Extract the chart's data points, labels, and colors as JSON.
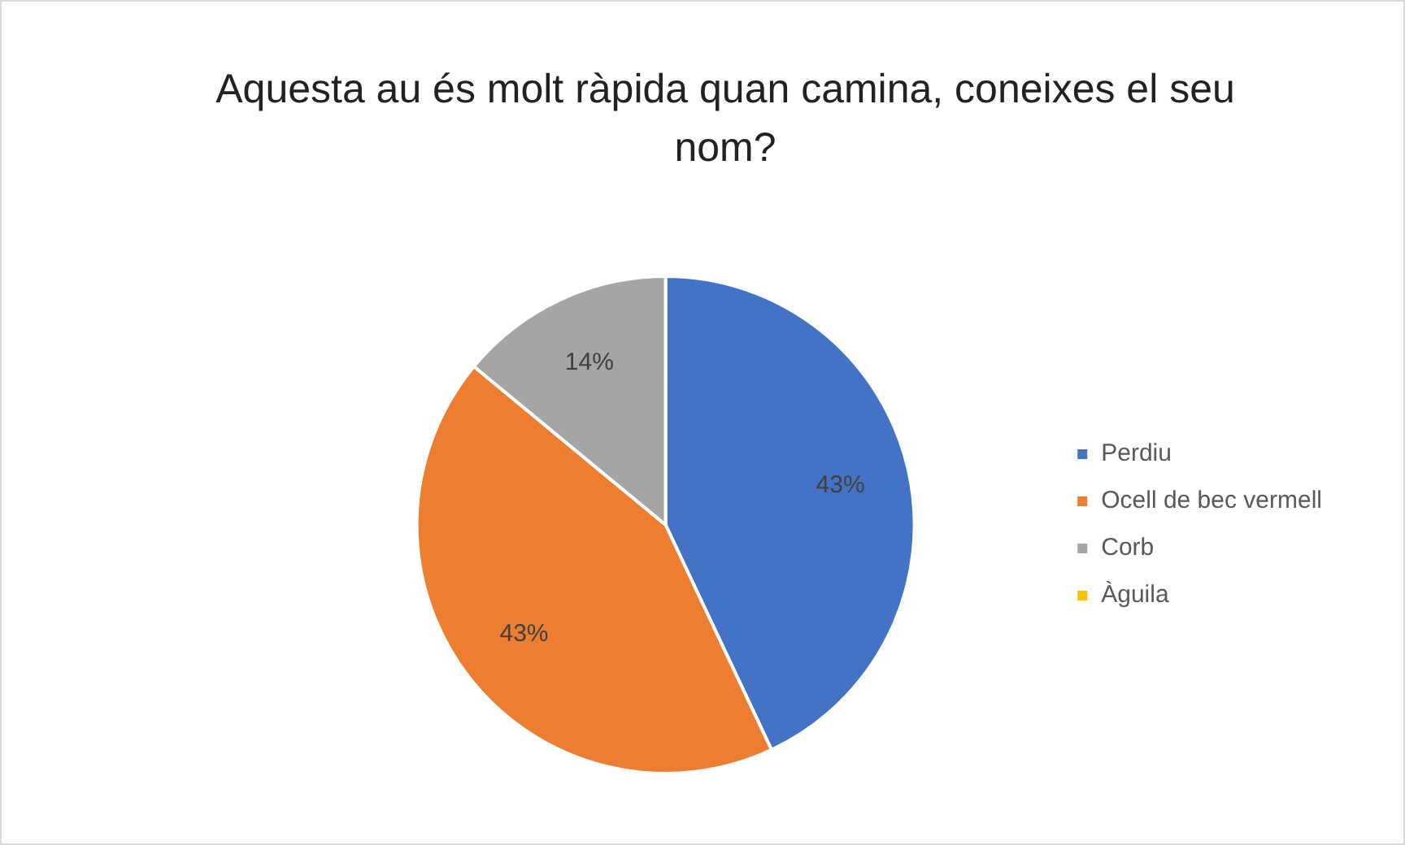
{
  "chart_data": {
    "type": "pie",
    "title": "Aquesta au és molt ràpida quan camina, coneixes el seu nom?",
    "categories": [
      "Perdiu",
      "Ocell de bec vermell",
      "Corb",
      "Àguila"
    ],
    "values": [
      43,
      43,
      14,
      0
    ],
    "colors": [
      "#4472c4",
      "#ed7d31",
      "#a5a5a5",
      "#ffc000"
    ],
    "value_labels": [
      "43%",
      "43%",
      "14%",
      null
    ],
    "legend": "right"
  }
}
